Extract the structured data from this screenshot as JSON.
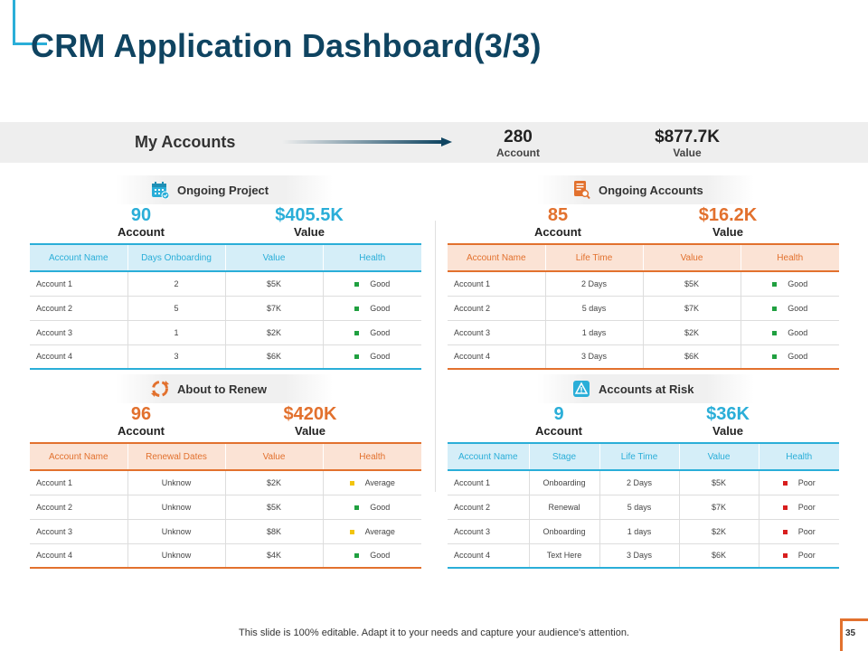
{
  "title": "CRM Application Dashboard(3/3)",
  "colors": {
    "blue": "#2aaed8",
    "orange": "#e2712e",
    "navy": "#0f4461",
    "good": "#20a040",
    "average": "#f2c40e",
    "poor": "#d81e1e"
  },
  "banner": {
    "label": "My Accounts",
    "accounts": {
      "value": "280",
      "label": "Account"
    },
    "amount": {
      "value": "$877.7K",
      "label": "Value"
    }
  },
  "ongoing_project": {
    "title": "Ongoing Project",
    "icon": "calendar-check-icon",
    "account": {
      "value": "90",
      "label": "Account"
    },
    "amount": {
      "value": "$405.5K",
      "label": "Value"
    },
    "columns": [
      "Account Name",
      "Days Onboarding",
      "Value",
      "Health"
    ],
    "rows": [
      {
        "name": "Account 1",
        "c2": "2",
        "value": "$5K",
        "health": "Good",
        "status": "good"
      },
      {
        "name": "Account 2",
        "c2": "5",
        "value": "$7K",
        "health": "Good",
        "status": "good"
      },
      {
        "name": "Account 3",
        "c2": "1",
        "value": "$2K",
        "health": "Good",
        "status": "good"
      },
      {
        "name": "Account 4",
        "c2": "3",
        "value": "$6K",
        "health": "Good",
        "status": "good"
      }
    ]
  },
  "ongoing_accounts": {
    "title": "Ongoing Accounts",
    "icon": "document-search-icon",
    "account": {
      "value": "85",
      "label": "Account"
    },
    "amount": {
      "value": "$16.2K",
      "label": "Value"
    },
    "columns": [
      "Account Name",
      "Life Time",
      "Value",
      "Health"
    ],
    "rows": [
      {
        "name": "Account 1",
        "c2": "2 Days",
        "value": "$5K",
        "health": "Good",
        "status": "good"
      },
      {
        "name": "Account 2",
        "c2": "5 days",
        "value": "$7K",
        "health": "Good",
        "status": "good"
      },
      {
        "name": "Account 3",
        "c2": "1 days",
        "value": "$2K",
        "health": "Good",
        "status": "good"
      },
      {
        "name": "Account 4",
        "c2": "3 Days",
        "value": "$6K",
        "health": "Good",
        "status": "good"
      }
    ]
  },
  "about_to_renew": {
    "title": "About to Renew",
    "icon": "refresh-cycle-icon",
    "account": {
      "value": "96",
      "label": "Account"
    },
    "amount": {
      "value": "$420K",
      "label": "Value"
    },
    "columns": [
      "Account Name",
      "Renewal Dates",
      "Value",
      "Health"
    ],
    "rows": [
      {
        "name": "Account 1",
        "c2": "Unknow",
        "value": "$2K",
        "health": "Average",
        "status": "average"
      },
      {
        "name": "Account 2",
        "c2": "Unknow",
        "value": "$5K",
        "health": "Good",
        "status": "good"
      },
      {
        "name": "Account 3",
        "c2": "Unknow",
        "value": "$8K",
        "health": "Average",
        "status": "average"
      },
      {
        "name": "Account 4",
        "c2": "Unknow",
        "value": "$4K",
        "health": "Good",
        "status": "good"
      }
    ]
  },
  "accounts_at_risk": {
    "title": "Accounts  at Risk",
    "icon": "warning-triangle-icon",
    "account": {
      "value": "9",
      "label": "Account"
    },
    "amount": {
      "value": "$36K",
      "label": "Value"
    },
    "columns": [
      "Account Name",
      "Stage",
      "Life Time",
      "Value",
      "Health"
    ],
    "rows": [
      {
        "name": "Account 1",
        "stage": "Onboarding",
        "c2": "2 Days",
        "value": "$5K",
        "health": "Poor",
        "status": "poor"
      },
      {
        "name": "Account 2",
        "stage": "Renewal",
        "c2": "5 days",
        "value": "$7K",
        "health": "Poor",
        "status": "poor"
      },
      {
        "name": "Account 3",
        "stage": "Onboarding",
        "c2": "1 days",
        "value": "$2K",
        "health": "Poor",
        "status": "poor"
      },
      {
        "name": "Account 4",
        "stage": "Text Here",
        "c2": "3 Days",
        "value": "$6K",
        "health": "Poor",
        "status": "poor"
      }
    ]
  },
  "footer": {
    "note": "This slide is 100% editable. Adapt it to your needs and capture your audience's attention.",
    "page": "35"
  }
}
